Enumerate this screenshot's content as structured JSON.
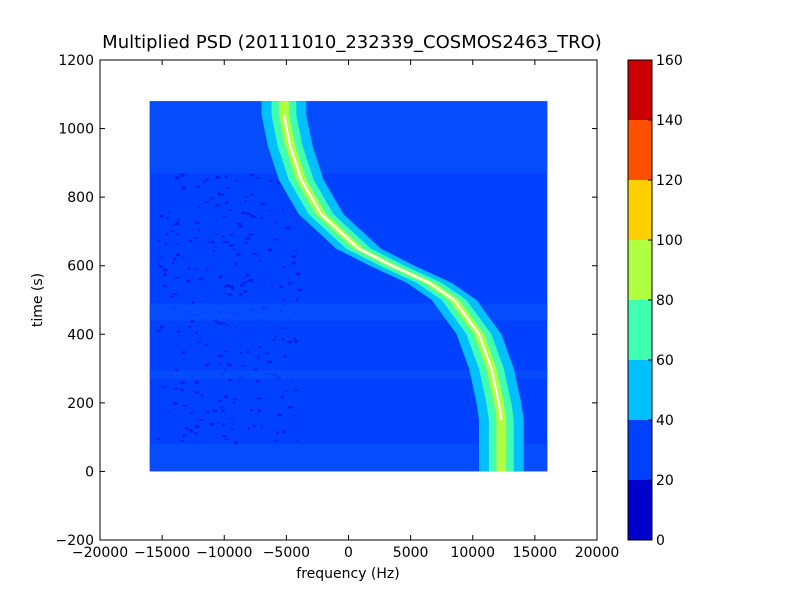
{
  "chart_data": {
    "type": "heatmap",
    "title": "Multiplied PSD (20111010_232339_COSMOS2463_TRO)",
    "xlabel": "frequency (Hz)",
    "ylabel": "time (s)",
    "xlim": [
      -20000,
      20000
    ],
    "ylim": [
      -200,
      1200
    ],
    "xticks": [
      -20000,
      -15000,
      -10000,
      -5000,
      0,
      5000,
      10000,
      15000,
      20000
    ],
    "xtick_labels": [
      "−20000",
      "−15000",
      "−10000",
      "−5000",
      "0",
      "5000",
      "10000",
      "15000",
      "20000"
    ],
    "yticks": [
      -200,
      0,
      200,
      400,
      600,
      800,
      1000,
      1200
    ],
    "ytick_labels": [
      "−200",
      "0",
      "200",
      "400",
      "600",
      "800",
      "1000",
      "1200"
    ],
    "data_extent": {
      "x": [
        -16000,
        16000
      ],
      "y": [
        0,
        1080
      ]
    },
    "colormap": "jet",
    "colorbar": {
      "range": [
        0,
        160
      ],
      "ticks": [
        0,
        20,
        40,
        60,
        80,
        100,
        120,
        140,
        160
      ],
      "tick_labels": [
        "0",
        "20",
        "40",
        "60",
        "80",
        "100",
        "120",
        "140",
        "160"
      ],
      "levels": [
        {
          "from": 0,
          "to": 20,
          "color": "#0000cc"
        },
        {
          "from": 20,
          "to": 40,
          "color": "#0040ff"
        },
        {
          "from": 40,
          "to": 60,
          "color": "#00c0ff"
        },
        {
          "from": 60,
          "to": 80,
          "color": "#40ffb0"
        },
        {
          "from": 80,
          "to": 100,
          "color": "#b0ff40"
        },
        {
          "from": 100,
          "to": 120,
          "color": "#ffd000"
        },
        {
          "from": 120,
          "to": 140,
          "color": "#ff5000"
        },
        {
          "from": 140,
          "to": 160,
          "color": "#cc0000"
        }
      ]
    },
    "doppler_trace": [
      {
        "time": 1040,
        "frequency": -5200
      },
      {
        "time": 950,
        "frequency": -4700
      },
      {
        "time": 850,
        "frequency": -3800
      },
      {
        "time": 750,
        "frequency": -2200
      },
      {
        "time": 650,
        "frequency": 800
      },
      {
        "time": 600,
        "frequency": 3500
      },
      {
        "time": 550,
        "frequency": 6500
      },
      {
        "time": 500,
        "frequency": 8500
      },
      {
        "time": 400,
        "frequency": 10500
      },
      {
        "time": 300,
        "frequency": 11500
      },
      {
        "time": 200,
        "frequency": 12100
      },
      {
        "time": 150,
        "frequency": 12300
      }
    ],
    "band_profile": [
      {
        "halfwidth": 400,
        "level": 85
      },
      {
        "halfwidth": 1000,
        "level": 70
      },
      {
        "halfwidth": 1800,
        "level": 55
      }
    ],
    "background_level": 30,
    "quiet_patches": [
      {
        "x": [
          -15500,
          -4000
        ],
        "y": [
          80,
          870
        ],
        "level": 18
      },
      {
        "x": [
          8000,
          14500
        ],
        "y": [
          500,
          870
        ],
        "level": 20
      }
    ],
    "brighter_rows": [
      {
        "y": [
          0,
          80
        ]
      },
      {
        "y": [
          270,
          295
        ]
      },
      {
        "y": [
          440,
          490
        ]
      },
      {
        "y": [
          870,
          1080
        ]
      }
    ],
    "trace_color": "#ffffff"
  }
}
